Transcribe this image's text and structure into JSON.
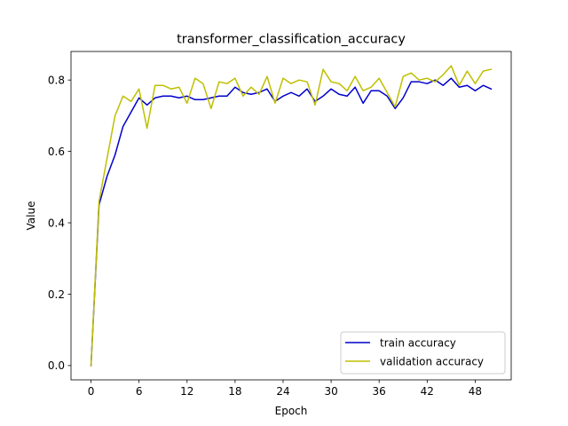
{
  "chart_data": {
    "type": "line",
    "title": "transformer_classification_accuracy",
    "xlabel": "Epoch",
    "ylabel": "Value",
    "xlim": [
      -2.5,
      52.5
    ],
    "ylim": [
      -0.04,
      0.88
    ],
    "xticks": [
      0,
      6,
      12,
      18,
      24,
      30,
      36,
      42,
      48
    ],
    "yticks": [
      0.0,
      0.2,
      0.4,
      0.6,
      0.8
    ],
    "ytick_labels": [
      "0.0",
      "0.2",
      "0.4",
      "0.6",
      "0.8"
    ],
    "grid": false,
    "legend_position": "lower-right",
    "series": [
      {
        "name": "train accuracy",
        "color": "#0000cc",
        "x": [
          0,
          1,
          2,
          3,
          4,
          5,
          6,
          7,
          8,
          9,
          10,
          11,
          12,
          13,
          14,
          15,
          16,
          17,
          18,
          19,
          20,
          21,
          22,
          23,
          24,
          25,
          26,
          27,
          28,
          29,
          30,
          31,
          32,
          33,
          34,
          35,
          36,
          37,
          38,
          39,
          40,
          41,
          42,
          43,
          44,
          45,
          46,
          47,
          48,
          49,
          50
        ],
        "values": [
          0.0,
          0.45,
          0.53,
          0.59,
          0.67,
          0.71,
          0.75,
          0.73,
          0.75,
          0.755,
          0.755,
          0.75,
          0.755,
          0.745,
          0.745,
          0.75,
          0.755,
          0.755,
          0.78,
          0.765,
          0.76,
          0.765,
          0.775,
          0.74,
          0.755,
          0.765,
          0.755,
          0.775,
          0.74,
          0.755,
          0.775,
          0.76,
          0.755,
          0.78,
          0.735,
          0.77,
          0.77,
          0.755,
          0.72,
          0.75,
          0.795,
          0.795,
          0.79,
          0.8,
          0.785,
          0.805,
          0.78,
          0.785,
          0.77,
          0.785,
          0.775
        ]
      },
      {
        "name": "validation accuracy",
        "color": "#bfbf00",
        "x": [
          0,
          1,
          2,
          3,
          4,
          5,
          6,
          7,
          8,
          9,
          10,
          11,
          12,
          13,
          14,
          15,
          16,
          17,
          18,
          19,
          20,
          21,
          22,
          23,
          24,
          25,
          26,
          27,
          28,
          29,
          30,
          31,
          32,
          33,
          34,
          35,
          36,
          37,
          38,
          39,
          40,
          41,
          42,
          43,
          44,
          45,
          46,
          47,
          48,
          49,
          50
        ],
        "values": [
          0.0,
          0.46,
          0.58,
          0.7,
          0.755,
          0.74,
          0.775,
          0.665,
          0.785,
          0.785,
          0.775,
          0.78,
          0.735,
          0.805,
          0.79,
          0.72,
          0.795,
          0.79,
          0.805,
          0.755,
          0.78,
          0.76,
          0.81,
          0.735,
          0.805,
          0.79,
          0.8,
          0.795,
          0.73,
          0.83,
          0.795,
          0.79,
          0.77,
          0.81,
          0.77,
          0.78,
          0.805,
          0.765,
          0.725,
          0.81,
          0.82,
          0.8,
          0.805,
          0.795,
          0.815,
          0.84,
          0.785,
          0.825,
          0.79,
          0.825,
          0.83
        ]
      }
    ]
  }
}
